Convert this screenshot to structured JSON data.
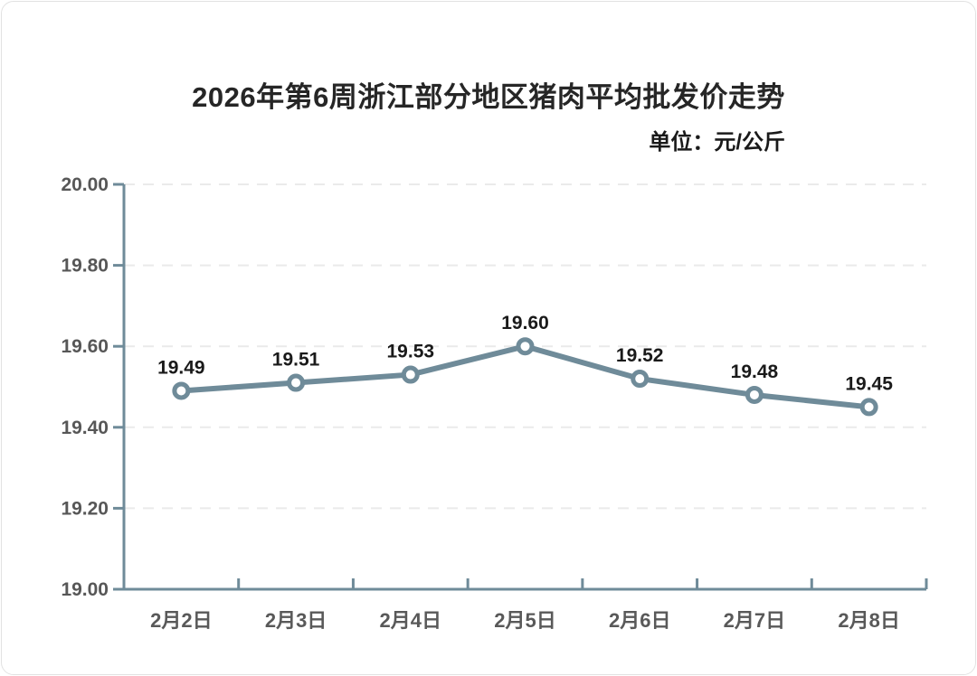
{
  "chart_data": {
    "type": "line",
    "title": "2026年第6周浙江部分地区猪肉平均批发价走势",
    "unit_label": "单位：元/公斤",
    "categories": [
      "2月2日",
      "2月3日",
      "2月4日",
      "2月5日",
      "2月6日",
      "2月7日",
      "2月8日"
    ],
    "values": [
      19.49,
      19.51,
      19.53,
      19.6,
      19.52,
      19.48,
      19.45
    ],
    "data_labels": [
      "19.49",
      "19.51",
      "19.53",
      "19.60",
      "19.52",
      "19.48",
      "19.45"
    ],
    "y_ticks": [
      "20.00",
      "19.80",
      "19.60",
      "19.40",
      "19.20",
      "19.00"
    ],
    "ylim": [
      19.0,
      20.0
    ],
    "y_tick_step": 0.2,
    "xlabel": "",
    "ylabel": "",
    "legend": "none",
    "grid": "horizontal-dashed",
    "colors": {
      "line": "#6f8b99",
      "marker_ring": "#6f8b99",
      "marker_fill": "#ffffff",
      "axis": "#6f8b99",
      "gridline": "#eaeaea",
      "title_text": "#262626",
      "axis_label_text": "#595959",
      "data_label_text": "#1a1a1a"
    }
  }
}
